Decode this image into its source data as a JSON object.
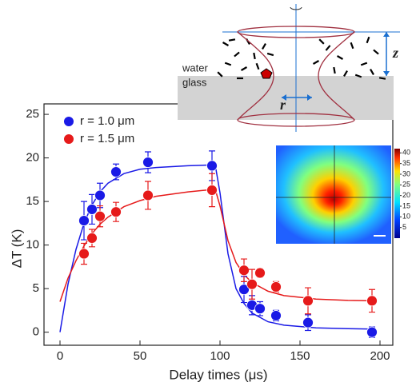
{
  "chart_data": {
    "type": "scatter",
    "x_label": "Delay times (μs)",
    "y_label": "ΔT (K)",
    "xlim": [
      -10,
      208
    ],
    "ylim": [
      -1.5,
      26.2
    ],
    "xticks": [
      0,
      50,
      100,
      150,
      200
    ],
    "yticks": [
      0,
      5,
      10,
      15,
      20,
      25
    ],
    "series": [
      {
        "name": "r = 1.0 μm",
        "color": "#1a1ae6",
        "x": [
          15,
          20,
          25,
          35,
          55,
          95,
          115,
          120,
          125,
          135,
          155,
          195
        ],
        "values": [
          12.8,
          14.1,
          15.7,
          18.4,
          19.5,
          19.1,
          4.9,
          3.1,
          2.7,
          1.9,
          1.1,
          0
        ],
        "errors": [
          2.2,
          1.7,
          1.4,
          0.9,
          1.2,
          1.7,
          1.5,
          1.1,
          0.8,
          0.6,
          0.9,
          0.6
        ]
      },
      {
        "name": "r = 1.5 μm",
        "color": "#e61a1a",
        "x": [
          15,
          20,
          25,
          35,
          55,
          95,
          115,
          120,
          125,
          135,
          155,
          195
        ],
        "values": [
          9.0,
          10.8,
          13.3,
          13.8,
          15.7,
          16.3,
          7.1,
          5.5,
          6.8,
          5.2,
          3.6,
          3.6
        ],
        "errors": [
          1.2,
          1.0,
          1.2,
          1.1,
          1.6,
          1.9,
          1.3,
          1.7,
          0.5,
          0.6,
          1.5,
          1.3
        ]
      }
    ],
    "fits": [
      {
        "color": "#1a1ae6",
        "x": [
          0,
          5,
          10,
          15,
          20,
          25,
          30,
          40,
          50,
          60,
          80,
          97,
          100,
          105,
          110,
          115,
          120,
          130,
          140,
          160,
          180,
          195
        ],
        "values": [
          0,
          5.5,
          9.5,
          12.5,
          14.6,
          16.1,
          17.1,
          18.2,
          18.7,
          18.9,
          19.1,
          19.2,
          16,
          9,
          5,
          3.3,
          2.2,
          1.2,
          0.8,
          0.5,
          0.4,
          0.35
        ]
      },
      {
        "color": "#e61a1a",
        "x": [
          0,
          5,
          10,
          15,
          20,
          25,
          30,
          40,
          50,
          60,
          80,
          97,
          100,
          105,
          110,
          115,
          120,
          130,
          140,
          160,
          180,
          195
        ],
        "values": [
          3.5,
          6.2,
          8.2,
          9.9,
          11.3,
          12.4,
          13.2,
          14.4,
          15.1,
          15.6,
          16.1,
          16.4,
          14.5,
          10.5,
          8,
          6.6,
          5.7,
          4.7,
          4.2,
          3.8,
          3.65,
          3.6
        ]
      }
    ]
  },
  "schematic": {
    "water": "water",
    "glass": "glass",
    "r": "r",
    "z": "z"
  },
  "heatmap": {
    "colorbar_range": [
      0,
      42
    ],
    "colorbar_ticks": [
      5,
      10,
      15,
      20,
      25,
      30,
      35,
      40
    ]
  }
}
